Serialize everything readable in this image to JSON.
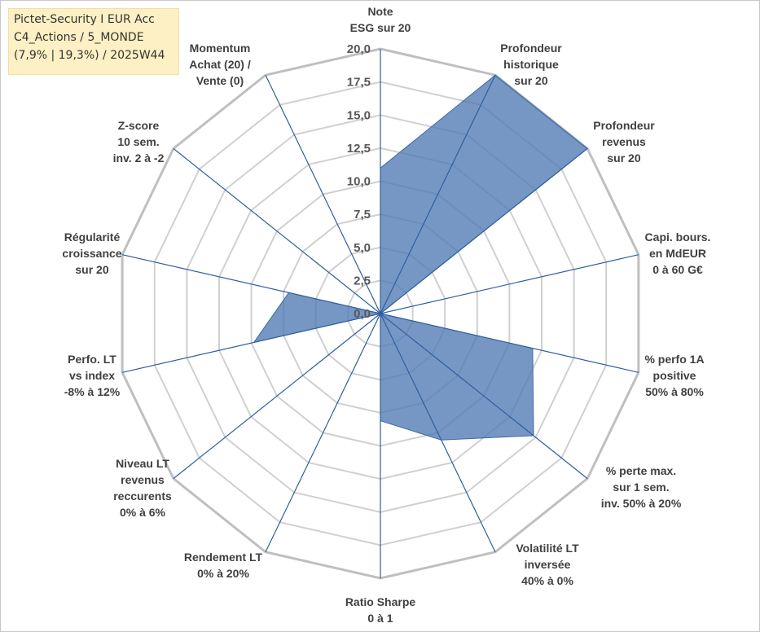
{
  "title": {
    "lines": [
      "Pictet-Security I EUR Acc",
      "C4_Actions / 5_MONDE",
      "(7,9% | 19,3%) / 2025W44"
    ]
  },
  "chart_data": {
    "type": "radar",
    "axes": [
      {
        "label": [
          "Note",
          "ESG sur 20"
        ]
      },
      {
        "label": [
          "Profondeur",
          "historique",
          "sur 20"
        ]
      },
      {
        "label": [
          "Profondeur",
          "revenus",
          "sur 20"
        ]
      },
      {
        "label": [
          "Capi. bours.",
          "en MdEUR",
          "0 à 60 G€"
        ]
      },
      {
        "label": [
          "% perfo 1A",
          "positive",
          "50% à 80%"
        ]
      },
      {
        "label": [
          "% perte max.",
          "sur 1 sem.",
          "inv. 50% à 20%"
        ]
      },
      {
        "label": [
          "Volatilité LT",
          "inversée",
          "40% à 0%"
        ]
      },
      {
        "label": [
          "Ratio Sharpe",
          "0 à 1"
        ]
      },
      {
        "label": [
          "Rendement LT",
          "0% à 20%"
        ]
      },
      {
        "label": [
          "Niveau LT",
          "revenus",
          "reccurents",
          "0% à 6%"
        ]
      },
      {
        "label": [
          "Perfo. LT",
          "vs index",
          "-8% à 12%"
        ]
      },
      {
        "label": [
          "Régularité",
          "croissance",
          "sur 20"
        ]
      },
      {
        "label": [
          "Z-score",
          "10 sem.",
          "inv. 2 à -2"
        ]
      },
      {
        "label": [
          "Momentum",
          "Achat (20) /",
          "Vente (0)"
        ]
      }
    ],
    "series": [
      {
        "values": [
          11.0,
          20.0,
          20.0,
          0.0,
          11.8,
          14.8,
          10.6,
          8.1,
          0.0,
          0.0,
          9.8,
          7.1,
          0.0,
          0.0
        ]
      }
    ],
    "ylim": [
      0,
      20
    ],
    "ticks": [
      "0,0",
      "2,5",
      "5,0",
      "7,5",
      "10,0",
      "12,5",
      "15,0",
      "17,5",
      "20,0"
    ],
    "grid": true,
    "legend": "none",
    "colors": {
      "fill": "#4f7ab3",
      "outline": "#3f6aa8",
      "spoke": "#2f5f9f",
      "ring": "#d0d0d0",
      "outer_ring": "#bfbfbf"
    }
  }
}
